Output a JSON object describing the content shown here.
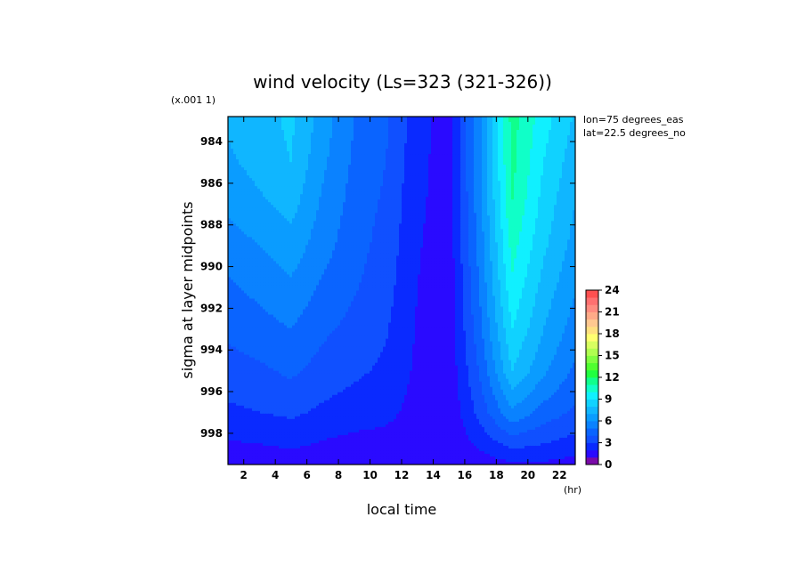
{
  "chart_data": {
    "type": "heatmap",
    "subtype": "filled-contour",
    "title": "wind velocity (Ls=323 (321-326))",
    "xlabel": "local time",
    "xunit": "(hr)",
    "ylabel": "sigma at layer midpoints",
    "yscale_note": "(x.001 1)",
    "annotations": [
      "lon=75 degrees_eas",
      "lat=22.5 degrees_no"
    ],
    "xlim": [
      1,
      23
    ],
    "ylim": [
      999.5,
      982.8
    ],
    "xticks": [
      2,
      4,
      6,
      8,
      10,
      12,
      14,
      16,
      18,
      20,
      22
    ],
    "yticks": [
      984,
      986,
      988,
      990,
      992,
      994,
      996,
      998
    ],
    "x": [
      1,
      3,
      5,
      7,
      9,
      11,
      13,
      15,
      17,
      19,
      21,
      23
    ],
    "y": [
      983,
      985,
      987,
      989,
      991,
      993,
      995,
      997,
      998.5,
      999.5
    ],
    "z": [
      [
        7.2,
        7.6,
        8.2,
        6.5,
        5.0,
        4.2,
        2.4,
        1.5,
        6.0,
        11.4,
        9.4,
        7.8
      ],
      [
        6.8,
        7.4,
        8.0,
        6.2,
        4.8,
        4.0,
        2.3,
        1.5,
        6.0,
        11.3,
        9.0,
        7.4
      ],
      [
        6.2,
        6.8,
        7.4,
        5.8,
        4.6,
        3.8,
        2.2,
        1.5,
        5.8,
        11.0,
        8.6,
        7.0
      ],
      [
        5.5,
        6.0,
        6.6,
        5.4,
        4.4,
        3.6,
        2.1,
        1.4,
        5.5,
        10.4,
        8.2,
        6.6
      ],
      [
        4.8,
        5.3,
        5.8,
        4.8,
        4.1,
        3.4,
        2.0,
        1.4,
        5.2,
        9.8,
        7.6,
        6.1
      ],
      [
        4.2,
        4.6,
        5.0,
        4.2,
        3.7,
        3.1,
        1.9,
        1.3,
        4.8,
        9.0,
        7.0,
        5.5
      ],
      [
        3.6,
        3.8,
        4.2,
        3.6,
        3.2,
        2.8,
        1.8,
        1.3,
        4.2,
        8.0,
        6.2,
        4.8
      ],
      [
        2.8,
        3.0,
        3.2,
        2.8,
        2.5,
        2.3,
        1.6,
        1.2,
        3.4,
        5.8,
        4.6,
        3.8
      ],
      [
        1.9,
        2.0,
        2.2,
        1.9,
        1.7,
        1.6,
        1.4,
        1.1,
        2.3,
        3.4,
        3.0,
        2.6
      ],
      [
        1.3,
        1.3,
        1.4,
        1.3,
        1.2,
        1.2,
        1.1,
        1.0,
        1.4,
        1.8,
        1.8,
        1.6
      ]
    ],
    "colorbar": {
      "ticks": [
        0,
        3,
        6,
        9,
        12,
        15,
        18,
        21,
        24
      ],
      "levels": [
        0,
        1,
        2,
        3,
        4,
        5,
        6,
        7,
        8,
        9,
        10,
        11,
        12,
        13,
        14,
        15,
        16,
        17,
        18,
        19,
        20,
        21,
        22,
        23,
        24
      ],
      "colors": [
        "#7a0aa8",
        "#2a0aff",
        "#0a2aff",
        "#1050ff",
        "#0a64ff",
        "#0a82ff",
        "#0a9cff",
        "#10b6ff",
        "#10d2ff",
        "#10f0ff",
        "#10ffc8",
        "#10ff8c",
        "#20ff40",
        "#50ff30",
        "#80ff40",
        "#b0ff50",
        "#d8ff60",
        "#ffff70",
        "#ffe080",
        "#ffc890",
        "#ffaa88",
        "#ff8c80",
        "#ff7070",
        "#ff5050"
      ]
    }
  }
}
